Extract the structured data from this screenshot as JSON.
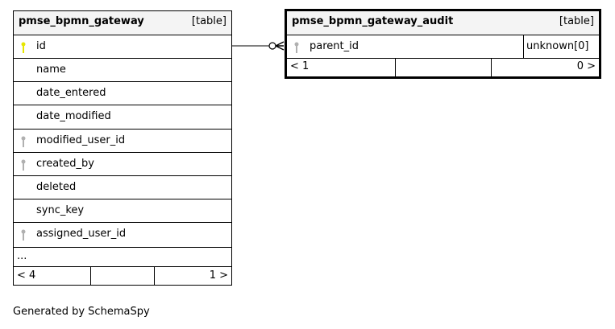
{
  "tables": [
    {
      "name": "pmse_bpmn_gateway",
      "kind": "[table]",
      "columns": [
        {
          "name": "id",
          "key": "primary"
        },
        {
          "name": "name",
          "key": ""
        },
        {
          "name": "date_entered",
          "key": ""
        },
        {
          "name": "date_modified",
          "key": ""
        },
        {
          "name": "modified_user_id",
          "key": "foreign"
        },
        {
          "name": "created_by",
          "key": "foreign"
        },
        {
          "name": "deleted",
          "key": ""
        },
        {
          "name": "sync_key",
          "key": ""
        },
        {
          "name": "assigned_user_id",
          "key": "foreign"
        }
      ],
      "more": "...",
      "parents": "< 4",
      "children": "1 >"
    },
    {
      "name": "pmse_bpmn_gateway_audit",
      "kind": "[table]",
      "columns": [
        {
          "name": "parent_id",
          "key": "foreign",
          "type": "unknown[0]"
        }
      ],
      "parents": "< 1",
      "children": "0 >"
    }
  ],
  "relationship": {
    "from": "pmse_bpmn_gateway_audit.parent_id",
    "to": "pmse_bpmn_gateway.id",
    "cardinality": "zero-or-many"
  },
  "colors": {
    "primary_key": "#e6e600",
    "foreign_key": "#b0b0b0",
    "header_bg": "#f4f4f4"
  },
  "footer": "Generated by SchemaSpy"
}
